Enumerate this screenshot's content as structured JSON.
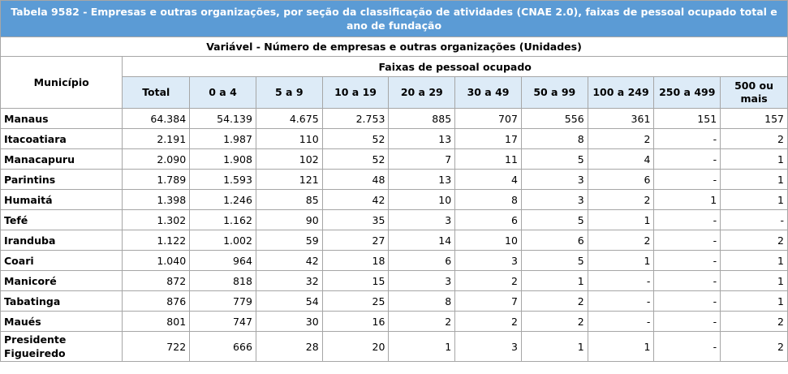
{
  "title": "Tabela 9582 - Empresas e outras organizações, por seção da classificação de atividades (CNAE 2.0), faixas de pessoal ocupado total e ano de fundação",
  "variable_label": "Variável - Número de empresas e outras organizações (Unidades)",
  "municipio_header": "Município",
  "faixas_header": "Faixas de pessoal ocupado",
  "columns": [
    "Total",
    "0 a 4",
    "5 a 9",
    "10 a 19",
    "20 a 29",
    "30 a 49",
    "50 a 99",
    "100 a 249",
    "250 a 499",
    "500 ou mais"
  ],
  "rows": [
    {
      "municipio": "Manaus",
      "values": [
        "64.384",
        "54.139",
        "4.675",
        "2.753",
        "885",
        "707",
        "556",
        "361",
        "151",
        "157"
      ]
    },
    {
      "municipio": "Itacoatiara",
      "values": [
        "2.191",
        "1.987",
        "110",
        "52",
        "13",
        "17",
        "8",
        "2",
        "-",
        "2"
      ]
    },
    {
      "municipio": "Manacapuru",
      "values": [
        "2.090",
        "1.908",
        "102",
        "52",
        "7",
        "11",
        "5",
        "4",
        "-",
        "1"
      ]
    },
    {
      "municipio": "Parintins",
      "values": [
        "1.789",
        "1.593",
        "121",
        "48",
        "13",
        "4",
        "3",
        "6",
        "-",
        "1"
      ]
    },
    {
      "municipio": "Humaitá",
      "values": [
        "1.398",
        "1.246",
        "85",
        "42",
        "10",
        "8",
        "3",
        "2",
        "1",
        "1"
      ]
    },
    {
      "municipio": "Tefé",
      "values": [
        "1.302",
        "1.162",
        "90",
        "35",
        "3",
        "6",
        "5",
        "1",
        "-",
        "-"
      ]
    },
    {
      "municipio": "Iranduba",
      "values": [
        "1.122",
        "1.002",
        "59",
        "27",
        "14",
        "10",
        "6",
        "2",
        "-",
        "2"
      ]
    },
    {
      "municipio": "Coari",
      "values": [
        "1.040",
        "964",
        "42",
        "18",
        "6",
        "3",
        "5",
        "1",
        "-",
        "1"
      ]
    },
    {
      "municipio": "Manicoré",
      "values": [
        "872",
        "818",
        "32",
        "15",
        "3",
        "2",
        "1",
        "-",
        "-",
        "1"
      ]
    },
    {
      "municipio": "Tabatinga",
      "values": [
        "876",
        "779",
        "54",
        "25",
        "8",
        "7",
        "2",
        "-",
        "-",
        "1"
      ]
    },
    {
      "municipio": "Maués",
      "values": [
        "801",
        "747",
        "30",
        "16",
        "2",
        "2",
        "2",
        "-",
        "-",
        "2"
      ]
    },
    {
      "municipio": "Presidente Figueiredo",
      "values": [
        "722",
        "666",
        "28",
        "20",
        "1",
        "3",
        "1",
        "1",
        "-",
        "2"
      ]
    }
  ],
  "colors": {
    "title_bg": "#5b9bd5",
    "column_header_bg": "#ddebf7",
    "border": "#a6a6a6"
  }
}
